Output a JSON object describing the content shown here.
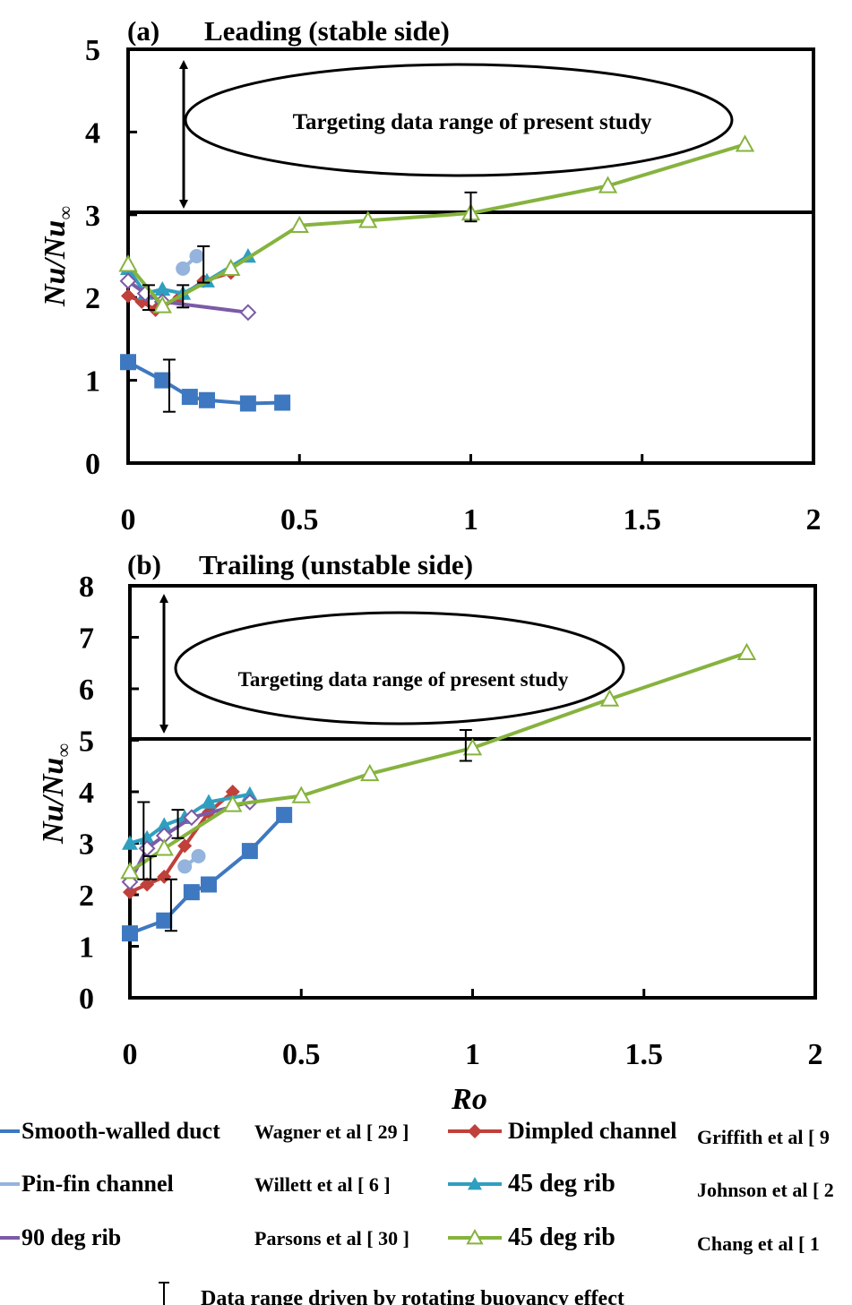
{
  "chart_data": [
    {
      "type": "line",
      "panel": "(a)",
      "title": "Leading (stable side)",
      "ylabel_main": "Nu/Nu",
      "ylabel_sub": "∞",
      "xlabel": "",
      "xlim": [
        0,
        2
      ],
      "ylim": [
        0,
        5
      ],
      "xticks": [
        "0",
        "0.5",
        "1",
        "1.5",
        "2"
      ],
      "yticks": [
        "0",
        "1",
        "2",
        "3",
        "4",
        "5"
      ],
      "xtick_values": [
        0,
        0.5,
        1,
        1.5,
        2
      ],
      "ytick_values": [
        0,
        1,
        2,
        3,
        4,
        5
      ],
      "annotation": "Targeting  data range of present study",
      "threshold_y": 3.05,
      "series": [
        {
          "key": "smooth",
          "x": [
            0,
            0.1,
            0.18,
            0.23,
            0.35,
            0.45
          ],
          "y": [
            1.22,
            1.0,
            0.8,
            0.76,
            0.72,
            0.73
          ]
        },
        {
          "key": "pinfin",
          "x": [
            0.16,
            0.2
          ],
          "y": [
            2.35,
            2.5
          ]
        },
        {
          "key": "dimpled",
          "x": [
            0,
            0.04,
            0.08,
            0.15,
            0.22,
            0.3
          ],
          "y": [
            2.02,
            1.95,
            1.85,
            2.0,
            2.2,
            2.3
          ]
        },
        {
          "key": "rib45j",
          "x": [
            0,
            0.05,
            0.1,
            0.16,
            0.23,
            0.35
          ],
          "y": [
            2.35,
            2.05,
            2.1,
            2.05,
            2.2,
            2.5
          ]
        },
        {
          "key": "rib90",
          "x": [
            0,
            0.05,
            0.1,
            0.35
          ],
          "y": [
            2.2,
            2.05,
            1.95,
            1.82
          ]
        },
        {
          "key": "rib45c",
          "x": [
            0,
            0.1,
            0.3,
            0.5,
            0.7,
            1.0,
            1.4,
            1.8
          ],
          "y": [
            2.4,
            1.9,
            2.35,
            2.87,
            2.93,
            3.02,
            3.35,
            3.85
          ]
        }
      ],
      "error_bars": [
        {
          "x": 0.06,
          "low": 1.85,
          "high": 2.15
        },
        {
          "x": 0.12,
          "low": 0.62,
          "high": 1.25
        },
        {
          "x": 0.16,
          "low": 1.88,
          "high": 2.15
        },
        {
          "x": 0.22,
          "low": 2.18,
          "high": 2.62
        },
        {
          "x": 1.0,
          "low": 2.92,
          "high": 3.27
        }
      ]
    },
    {
      "type": "line",
      "panel": "(b)",
      "title": "Trailing (unstable side)",
      "ylabel_main": "Nu/Nu",
      "ylabel_sub": "∞",
      "xlabel": "Ro",
      "xlim": [
        0,
        2
      ],
      "ylim": [
        0,
        8
      ],
      "xticks": [
        "0",
        "0.5",
        "1",
        "1.5",
        "2"
      ],
      "yticks": [
        "0",
        "1",
        "2",
        "3",
        "4",
        "5",
        "6",
        "7",
        "8"
      ],
      "xtick_values": [
        0,
        0.5,
        1,
        1.5,
        2
      ],
      "ytick_values": [
        0,
        1,
        2,
        3,
        4,
        5,
        6,
        7,
        8
      ],
      "annotation": "Targeting  data range of present study",
      "threshold_y": 5.05,
      "series": [
        {
          "key": "smooth",
          "x": [
            0,
            0.1,
            0.18,
            0.23,
            0.35,
            0.45
          ],
          "y": [
            1.25,
            1.5,
            2.05,
            2.2,
            2.85,
            3.55
          ]
        },
        {
          "key": "pinfin",
          "x": [
            0.16,
            0.2
          ],
          "y": [
            2.55,
            2.75
          ]
        },
        {
          "key": "dimpled",
          "x": [
            0,
            0.05,
            0.1,
            0.16,
            0.23,
            0.3
          ],
          "y": [
            2.05,
            2.2,
            2.35,
            2.95,
            3.6,
            4.0
          ]
        },
        {
          "key": "rib45j",
          "x": [
            0,
            0.05,
            0.1,
            0.16,
            0.23,
            0.35
          ],
          "y": [
            3.0,
            3.1,
            3.35,
            3.5,
            3.8,
            3.95
          ]
        },
        {
          "key": "rib90",
          "x": [
            0,
            0.05,
            0.1,
            0.18,
            0.35
          ],
          "y": [
            2.25,
            2.9,
            3.15,
            3.5,
            3.8
          ]
        },
        {
          "key": "rib45c",
          "x": [
            0,
            0.1,
            0.3,
            0.5,
            0.7,
            1.0,
            1.4,
            1.8
          ],
          "y": [
            2.45,
            2.9,
            3.75,
            3.92,
            4.35,
            4.85,
            5.8,
            6.7
          ]
        }
      ],
      "error_bars": [
        {
          "x": 0.04,
          "low": 2.3,
          "high": 3.8
        },
        {
          "x": 0.06,
          "low": 2.3,
          "high": 2.75
        },
        {
          "x": 0.12,
          "low": 1.3,
          "high": 2.3
        },
        {
          "x": 0.14,
          "low": 3.1,
          "high": 3.65
        },
        {
          "x": 0.98,
          "low": 4.6,
          "high": 5.2
        }
      ]
    }
  ],
  "legend": {
    "rows": [
      [
        {
          "key": "smooth",
          "label": "Smooth-walled duct",
          "author": "Wagner et al  [ 29 ]"
        },
        {
          "key": "dimpled",
          "label": "Dimpled channel",
          "author": "Griffith et al   [ 9"
        }
      ],
      [
        {
          "key": "pinfin",
          "label": "Pin-fin channel",
          "author": "Willett et al    [ 6 ]"
        },
        {
          "key": "rib45j",
          "label": "45 deg rib",
          "author": "Johnson et al  [ 2"
        }
      ],
      [
        {
          "key": "rib90",
          "label": "90 deg rib",
          "author": "Parsons et al  [ 30 ]"
        },
        {
          "key": "rib45c",
          "label": "45 deg rib",
          "author": "Chang et al     [ 1"
        }
      ]
    ],
    "errorbar_note": "Data range driven by rotating buoyancy effect"
  },
  "styles": {
    "smooth": {
      "color": "#3e78c0",
      "marker": "square"
    },
    "pinfin": {
      "color": "#94b3dd",
      "marker": "circle"
    },
    "dimpled": {
      "color": "#c0403a",
      "marker": "diamond"
    },
    "rib45j": {
      "color": "#2f9fbf",
      "marker": "triangle"
    },
    "rib90": {
      "color": "#7b5aa6",
      "marker": "diamond-open"
    },
    "rib45c": {
      "color": "#86b33e",
      "marker": "triangle-open"
    }
  }
}
